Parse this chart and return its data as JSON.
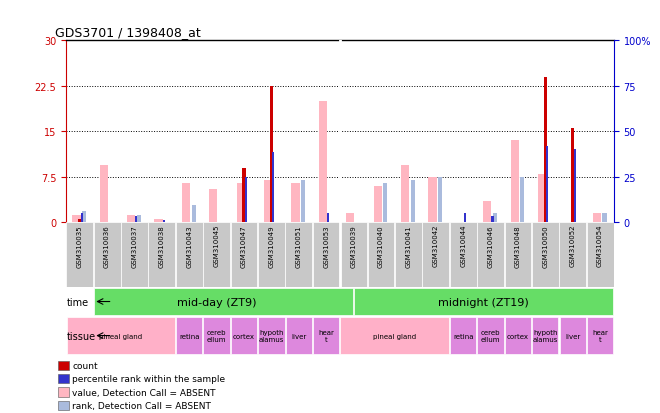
{
  "title": "GDS3701 / 1398408_at",
  "samples": [
    "GSM310035",
    "GSM310036",
    "GSM310037",
    "GSM310038",
    "GSM310043",
    "GSM310045",
    "GSM310047",
    "GSM310049",
    "GSM310051",
    "GSM310053",
    "GSM310039",
    "GSM310040",
    "GSM310041",
    "GSM310042",
    "GSM310044",
    "GSM310046",
    "GSM310048",
    "GSM310050",
    "GSM310052",
    "GSM310054"
  ],
  "count": [
    0.5,
    0,
    0,
    0,
    0,
    0,
    9.0,
    22.5,
    0,
    0,
    0,
    0,
    0,
    0,
    0,
    0,
    0,
    24.0,
    15.5,
    0
  ],
  "percentile_rank": [
    1.5,
    0,
    1.0,
    0.3,
    0,
    0,
    7.5,
    11.5,
    0,
    1.5,
    0,
    0,
    0,
    0,
    1.5,
    1.0,
    0,
    12.5,
    12.0,
    0
  ],
  "value_absent": [
    1.2,
    9.5,
    1.2,
    0.5,
    6.5,
    5.5,
    6.5,
    7.0,
    6.5,
    20.0,
    1.5,
    6.0,
    9.5,
    7.5,
    0,
    3.5,
    13.5,
    8.0,
    0,
    1.5
  ],
  "rank_absent": [
    1.8,
    0,
    1.2,
    0,
    2.8,
    0,
    0,
    0,
    7.0,
    0,
    0,
    6.5,
    7.0,
    7.5,
    0,
    1.5,
    7.5,
    0,
    0,
    1.5
  ],
  "ylim_left": [
    0,
    30
  ],
  "ylim_right": [
    0,
    100
  ],
  "yticks_left": [
    0,
    7.5,
    15,
    22.5,
    30
  ],
  "ytick_labels_left": [
    "0",
    "7.5",
    "15",
    "22.5",
    "30"
  ],
  "yticks_right": [
    0,
    25,
    50,
    75,
    100
  ],
  "ytick_labels_right": [
    "0",
    "25",
    "50",
    "75",
    "100%"
  ],
  "count_color": "#CC0000",
  "percentile_color": "#3333CC",
  "value_absent_color": "#FFB6C1",
  "rank_absent_color": "#AABBDD",
  "background_color": "#ffffff",
  "plot_bg_color": "#ffffff",
  "tick_bg_color": "#C8C8C8",
  "left_axis_color": "#CC0000",
  "right_axis_color": "#0000CC",
  "time_color": "#66DD66",
  "tissue_pink": "#FFB0C8",
  "tissue_purple": "#DD88DD",
  "midday_label": "mid-day (ZT9)",
  "midnight_label": "midnight (ZT19)",
  "tissue_groups_1": [
    {
      "label": "pineal gland",
      "start": 0,
      "end": 3,
      "pink": true
    },
    {
      "label": "retina",
      "start": 4,
      "end": 4,
      "pink": false
    },
    {
      "label": "cereb\nellum",
      "start": 5,
      "end": 5,
      "pink": false
    },
    {
      "label": "cortex",
      "start": 6,
      "end": 6,
      "pink": false
    },
    {
      "label": "hypoth\nalamus",
      "start": 7,
      "end": 7,
      "pink": false
    },
    {
      "label": "liver",
      "start": 8,
      "end": 8,
      "pink": false
    },
    {
      "label": "hear\nt",
      "start": 9,
      "end": 9,
      "pink": false
    }
  ],
  "tissue_groups_2": [
    {
      "label": "pineal gland",
      "start": 10,
      "end": 13,
      "pink": true
    },
    {
      "label": "retina",
      "start": 14,
      "end": 14,
      "pink": false
    },
    {
      "label": "cereb\nellum",
      "start": 15,
      "end": 15,
      "pink": false
    },
    {
      "label": "cortex",
      "start": 16,
      "end": 16,
      "pink": false
    },
    {
      "label": "hypoth\nalamus",
      "start": 17,
      "end": 17,
      "pink": false
    },
    {
      "label": "liver",
      "start": 18,
      "end": 18,
      "pink": false
    },
    {
      "label": "hear\nt",
      "start": 19,
      "end": 19,
      "pink": false
    }
  ]
}
